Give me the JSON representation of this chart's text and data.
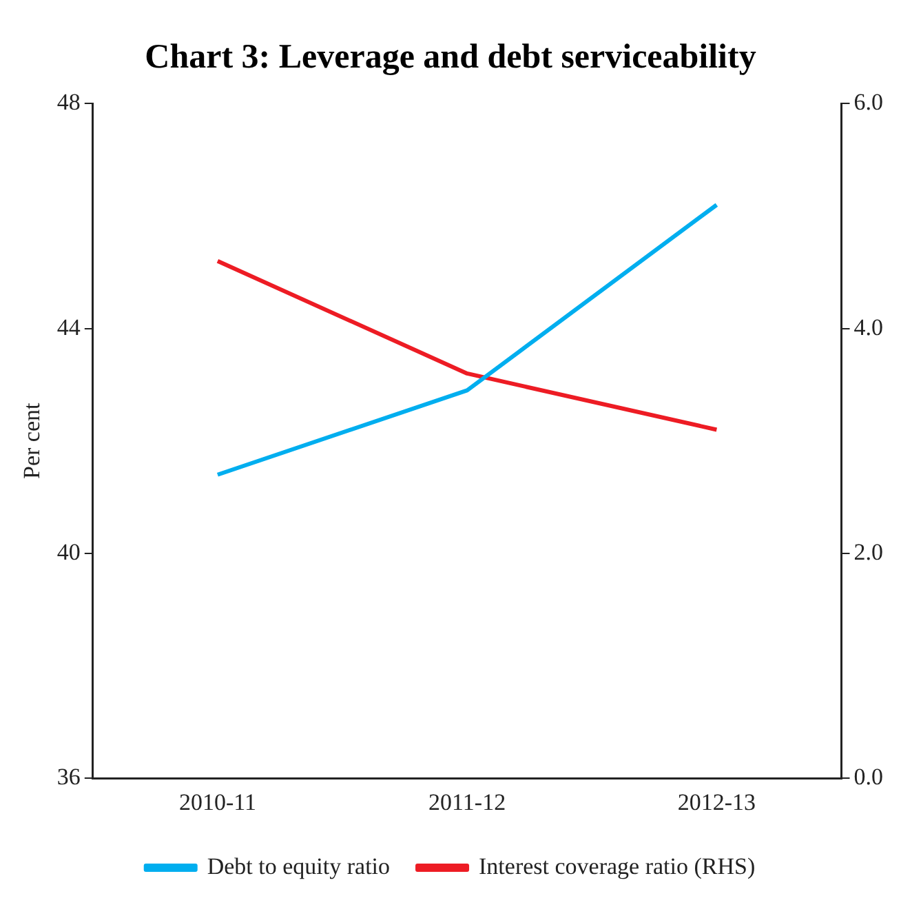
{
  "chart_data": {
    "type": "line",
    "title": "Chart 3: Leverage and debt serviceability",
    "ylabel": "Per cent",
    "categories": [
      "2010-11",
      "2011-12",
      "2012-13"
    ],
    "series": [
      {
        "name": "Debt to equity ratio",
        "color": "#00aeef",
        "values": [
          41.4,
          42.9,
          46.2
        ]
      },
      {
        "name": "Interest coverage ratio (RHS)",
        "color": "#ed1c24",
        "values": [
          4.6,
          3.6,
          3.1
        ],
        "axis": "y2"
      }
    ],
    "ylim": [
      36,
      48
    ],
    "yticks": [
      36,
      40,
      44,
      48
    ],
    "y2lim": [
      0,
      6
    ],
    "y2ticks": [
      {
        "value": 0,
        "label": "0.0"
      },
      {
        "value": 2,
        "label": "2.0"
      },
      {
        "value": 4,
        "label": "4.0"
      },
      {
        "value": 6,
        "label": "6.0"
      }
    ],
    "grid": false,
    "legend": "bottom",
    "marker": "none",
    "line_style": "solid"
  }
}
